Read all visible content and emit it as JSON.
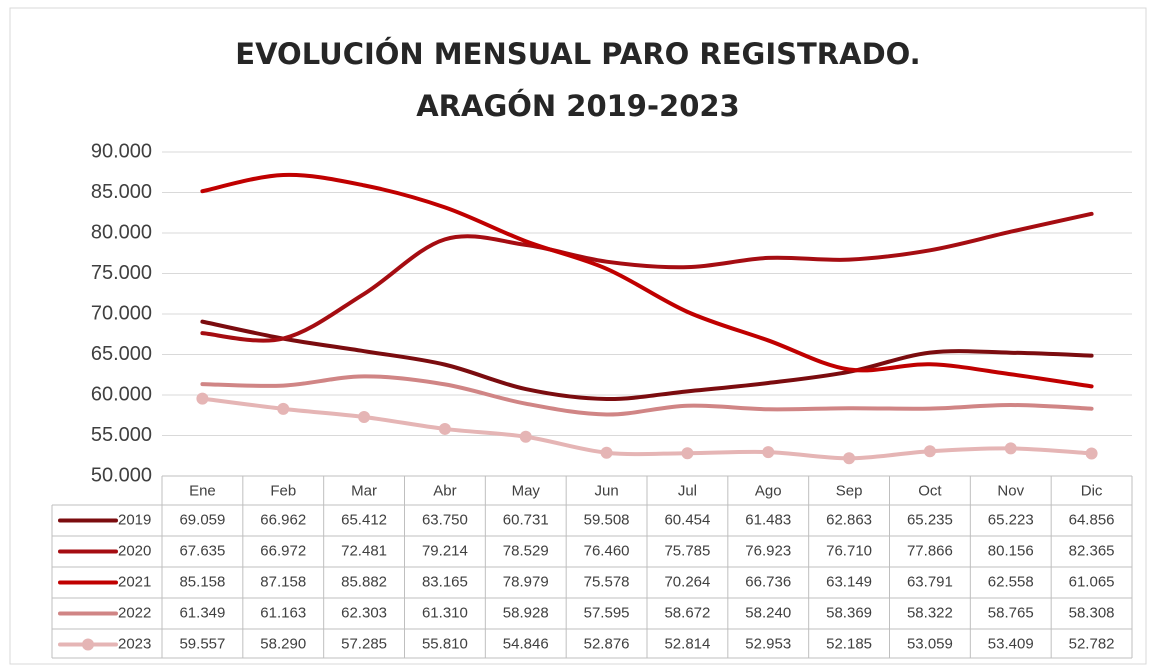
{
  "chart_data": {
    "type": "line",
    "title": "EVOLUCIÓN MENSUAL PARO REGISTRADO. ARAGÓN 2019-2023",
    "categories": [
      "Ene",
      "Feb",
      "Mar",
      "Abr",
      "May",
      "Jun",
      "Jul",
      "Ago",
      "Sep",
      "Oct",
      "Nov",
      "Dic"
    ],
    "ylim": [
      50000,
      90000
    ],
    "yticks": [
      {
        "value": 50000,
        "label": "50.000"
      },
      {
        "value": 55000,
        "label": "55.000"
      },
      {
        "value": 60000,
        "label": "60.000"
      },
      {
        "value": 65000,
        "label": "65.000"
      },
      {
        "value": 70000,
        "label": "70.000"
      },
      {
        "value": 75000,
        "label": "75.000"
      },
      {
        "value": 80000,
        "label": "80.000"
      },
      {
        "value": 85000,
        "label": "85.000"
      },
      {
        "value": 90000,
        "label": "90.000"
      }
    ],
    "grid": true,
    "series": [
      {
        "name": "2019",
        "color": "#7b0c0f",
        "marker": false,
        "values": [
          69059,
          66962,
          65412,
          63750,
          60731,
          59508,
          60454,
          61483,
          62863,
          65235,
          65223,
          64856
        ],
        "value_labels": [
          "69.059",
          "66.962",
          "65.412",
          "63.750",
          "60.731",
          "59.508",
          "60.454",
          "61.483",
          "62.863",
          "65.235",
          "65.223",
          "64.856"
        ]
      },
      {
        "name": "2020",
        "color": "#a50d12",
        "marker": false,
        "values": [
          67635,
          66972,
          72481,
          79214,
          78529,
          76460,
          75785,
          76923,
          76710,
          77866,
          80156,
          82365
        ],
        "value_labels": [
          "67.635",
          "66.972",
          "72.481",
          "79.214",
          "78.529",
          "76.460",
          "75.785",
          "76.923",
          "76.710",
          "77.866",
          "80.156",
          "82.365"
        ]
      },
      {
        "name": "2021",
        "color": "#c00000",
        "marker": false,
        "values": [
          85158,
          87158,
          85882,
          83165,
          78979,
          75578,
          70264,
          66736,
          63149,
          63791,
          62558,
          61065
        ],
        "value_labels": [
          "85.158",
          "87.158",
          "85.882",
          "83.165",
          "78.979",
          "75.578",
          "70.264",
          "66.736",
          "63.149",
          "63.791",
          "62.558",
          "61.065"
        ]
      },
      {
        "name": "2022",
        "color": "#d08585",
        "marker": false,
        "values": [
          61349,
          61163,
          62303,
          61310,
          58928,
          57595,
          58672,
          58240,
          58369,
          58322,
          58765,
          58308
        ],
        "value_labels": [
          "61.349",
          "61.163",
          "62.303",
          "61.310",
          "58.928",
          "57.595",
          "58.672",
          "58.240",
          "58.369",
          "58.322",
          "58.765",
          "58.308"
        ]
      },
      {
        "name": "2023",
        "color": "#e5b5b5",
        "marker": true,
        "values": [
          59557,
          58290,
          57285,
          55810,
          54846,
          52876,
          52814,
          52953,
          52185,
          53059,
          53409,
          52782
        ],
        "value_labels": [
          "59.557",
          "58.290",
          "57.285",
          "55.810",
          "54.846",
          "52.876",
          "52.814",
          "52.953",
          "52.185",
          "53.059",
          "53.409",
          "52.782"
        ]
      }
    ]
  }
}
